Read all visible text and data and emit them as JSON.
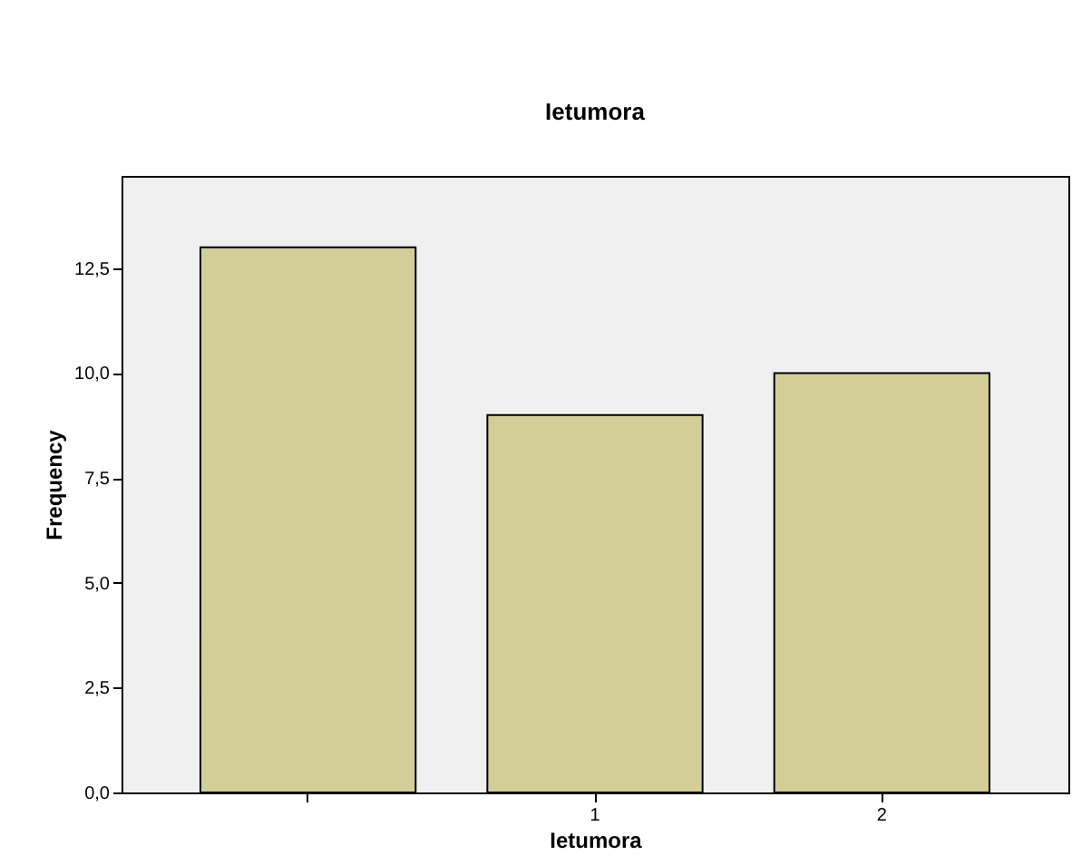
{
  "chart_data": {
    "type": "bar",
    "title": "Ietumora",
    "xlabel": "Ietumora",
    "ylabel": "Frequency",
    "categories": [
      null,
      "1",
      "2"
    ],
    "values": [
      13,
      9,
      10
    ],
    "color": "#d3ce98",
    "ylim": [
      0,
      14.7
    ],
    "yticks": [
      {
        "value": 0,
        "label": "0,0"
      },
      {
        "value": 2.5,
        "label": "2,5"
      },
      {
        "value": 5,
        "label": "5,0"
      },
      {
        "value": 7.5,
        "label": "7,5"
      },
      {
        "value": 10,
        "label": "10,0"
      },
      {
        "value": 12.5,
        "label": "12,5"
      }
    ],
    "grid": false
  }
}
